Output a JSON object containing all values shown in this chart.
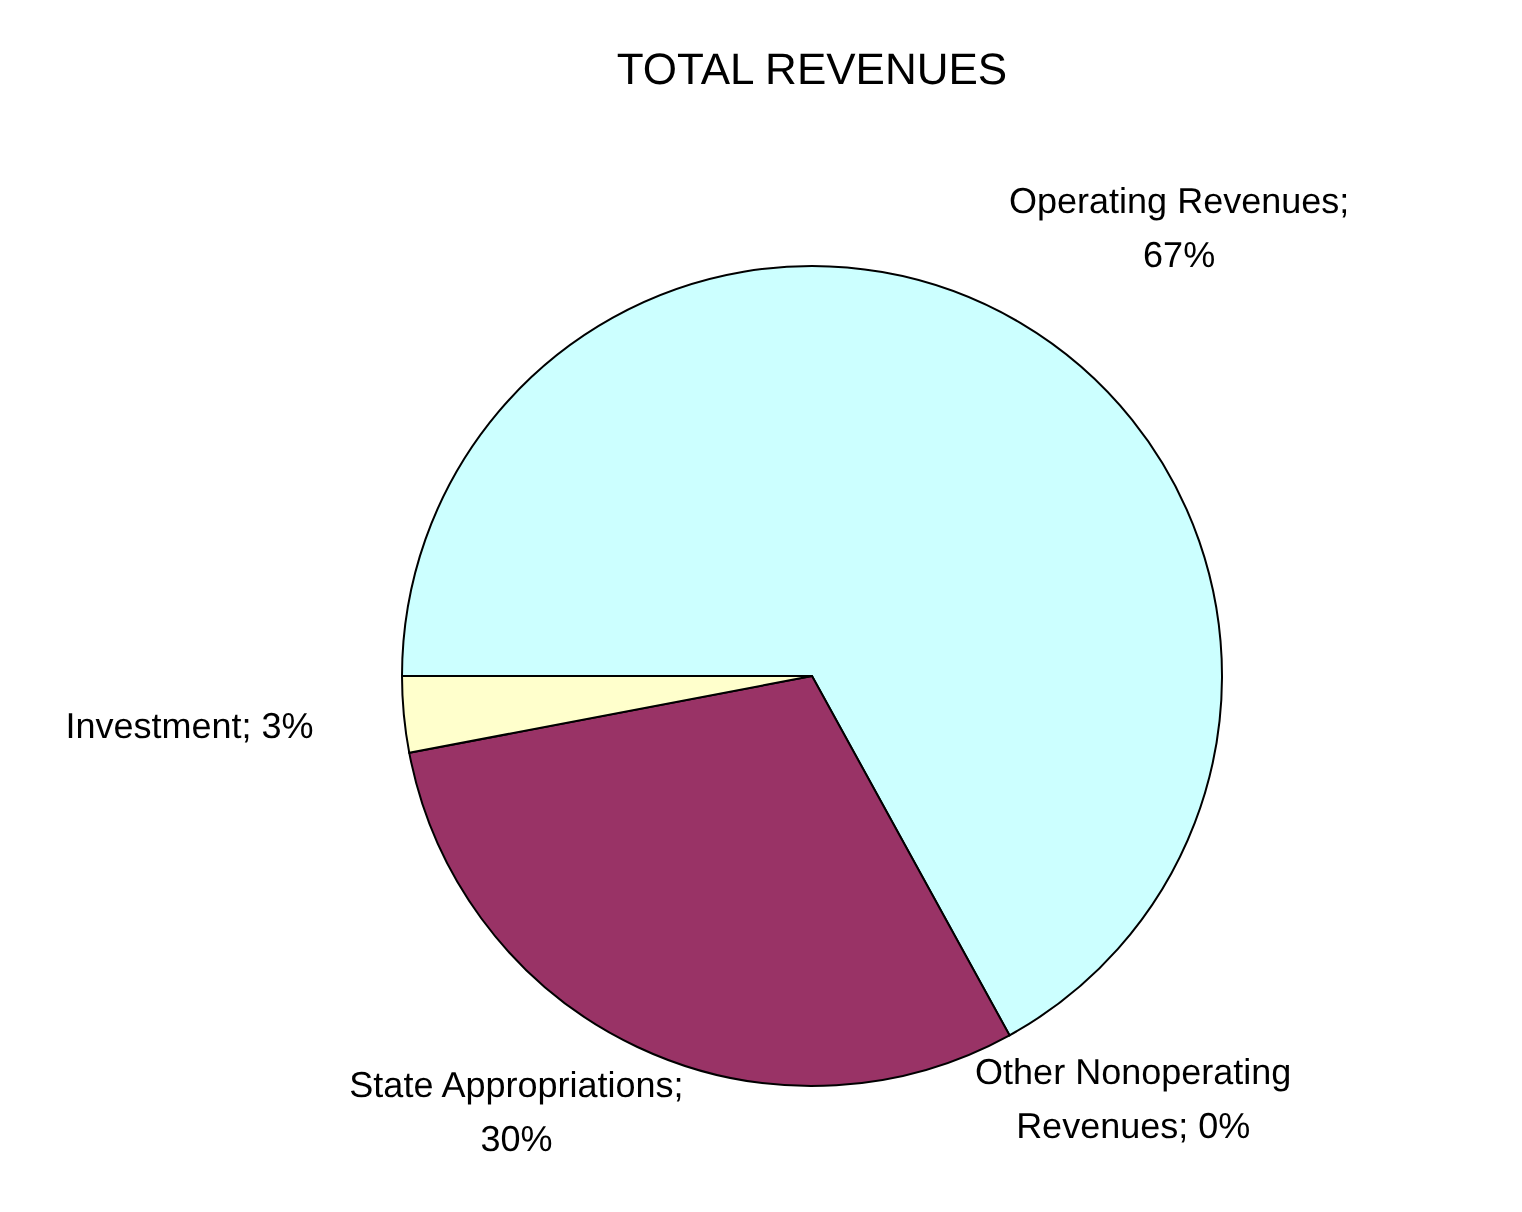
{
  "chart_data": {
    "type": "pie",
    "title": "TOTAL REVENUES",
    "categories": [
      "Operating Revenues",
      "Other Nonoperating Revenues",
      "State Appropriations",
      "Investment"
    ],
    "values": [
      67,
      0,
      30,
      3
    ],
    "value_labels": [
      "; 67%",
      "; 0%",
      "; 30%",
      "; 3%"
    ],
    "colors": [
      "#ccffff",
      "#3333cc",
      "#993366",
      "#ffffcc"
    ],
    "legend": false
  }
}
